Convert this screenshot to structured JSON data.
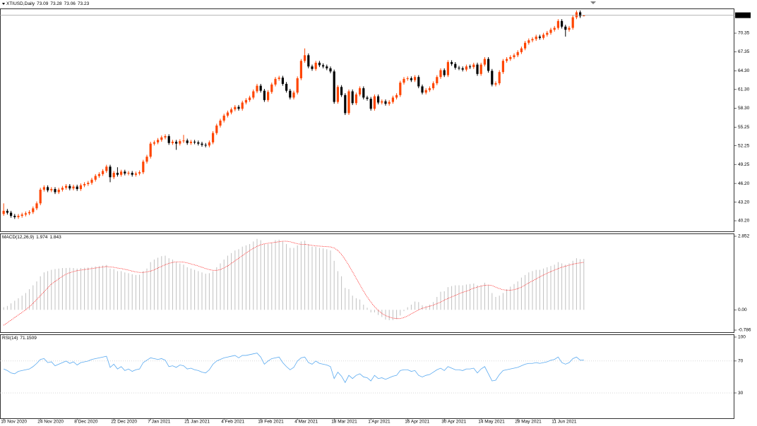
{
  "chart_data": [
    {
      "type": "candlestick",
      "title": "XTIUSD,Daily",
      "title_values": [
        73.09,
        73.28,
        73.06,
        73.23
      ],
      "up_color": "#ff4500",
      "down_color": "#000000",
      "last_price": 73.23,
      "xlim": [
        -1,
        199
      ],
      "ylim": [
        38.39,
        74.32
      ],
      "yticks": [
        {
          "value": 40.2,
          "label": "40.20"
        },
        {
          "value": 43.2,
          "label": "43.20"
        },
        {
          "value": 46.2,
          "label": "46.20"
        },
        49.25,
        52.25,
        55.25,
        {
          "value": 58.3,
          "label": "58.30"
        },
        {
          "value": 61.3,
          "label": "61.30"
        },
        {
          "value": 64.3,
          "label": "64.30"
        },
        67.35,
        70.35
      ],
      "open": [
        41.3,
        41.8,
        41.5,
        41.0,
        40.8,
        41.0,
        41.2,
        41.4,
        41.6,
        42.2,
        43.0,
        45.2,
        45.6,
        45.1,
        45.3,
        44.8,
        45.2,
        45.5,
        45.8,
        45.4,
        45.7,
        45.3,
        45.9,
        46.1,
        46.3,
        46.8,
        47.4,
        47.7,
        48.2,
        48.9,
        47.2,
        47.9,
        47.6,
        48.1,
        47.8,
        47.9,
        47.6,
        47.8,
        48.0,
        49.7,
        50.5,
        52.6,
        52.8,
        53.2,
        53.6,
        53.8,
        52.7,
        52.9,
        52.6,
        53.0,
        53.1,
        52.7,
        52.9,
        52.8,
        52.6,
        52.4,
        52.3,
        52.8,
        54.3,
        55.5,
        56.3,
        57.1,
        57.6,
        58.1,
        58.5,
        58.2,
        59.2,
        59.6,
        60.0,
        61.0,
        61.9,
        61.1,
        59.6,
        60.9,
        62.1,
        63.0,
        63.2,
        62.2,
        61.1,
        60.0,
        60.8,
        63.1,
        65.9,
        66.8,
        65.0,
        64.6,
        65.6,
        65.2,
        65.0,
        64.7,
        64.2,
        59.3,
        61.7,
        60.4,
        57.5,
        61.0,
        59.1,
        60.5,
        61.5,
        60.0,
        59.8,
        58.2,
        60.2,
        59.2,
        59.4,
        59.0,
        59.3,
        60.0,
        60.4,
        62.4,
        63.0,
        63.1,
        62.8,
        63.3,
        61.8,
        60.8,
        61.2,
        61.5,
        62.3,
        63.3,
        64.4,
        63.6,
        65.7,
        65.4,
        64.8,
        64.7,
        64.5,
        65.0,
        64.9,
        65.3,
        63.8,
        65.3,
        66.2,
        64.3,
        62.1,
        62.3,
        64.1,
        65.9,
        66.2,
        66.5,
        66.8,
        67.3,
        67.9,
        68.8,
        69.2,
        69.4,
        69.8,
        69.6,
        70.1,
        70.4,
        70.9,
        71.2,
        72.3,
        71.4,
        70.9,
        71.2,
        72.9,
        73.7,
        73.09
      ],
      "high": [
        43.0,
        42.1,
        41.8,
        41.3,
        41.3,
        41.5,
        41.7,
        41.9,
        42.5,
        43.3,
        45.5,
        45.9,
        45.9,
        45.6,
        45.6,
        45.5,
        45.8,
        46.1,
        46.1,
        46.0,
        46.0,
        46.2,
        46.4,
        46.6,
        47.1,
        47.7,
        48.0,
        48.5,
        49.2,
        49.2,
        48.2,
        48.8,
        48.4,
        48.4,
        48.2,
        48.2,
        48.1,
        48.3,
        50.0,
        50.8,
        52.9,
        53.1,
        53.5,
        53.9,
        54.1,
        54.1,
        53.2,
        53.2,
        53.3,
        54.0,
        53.4,
        53.2,
        53.2,
        53.1,
        52.9,
        52.7,
        53.1,
        54.6,
        55.8,
        56.6,
        57.4,
        57.9,
        58.4,
        58.8,
        58.8,
        59.5,
        59.9,
        60.3,
        61.3,
        62.2,
        62.2,
        61.4,
        61.2,
        62.4,
        63.3,
        63.5,
        63.5,
        62.5,
        61.4,
        61.1,
        63.4,
        66.2,
        67.9,
        67.1,
        65.3,
        65.9,
        65.9,
        65.5,
        65.3,
        65.0,
        64.5,
        62.0,
        62.0,
        60.7,
        61.3,
        61.3,
        60.8,
        61.8,
        61.8,
        60.3,
        60.1,
        60.5,
        60.5,
        59.7,
        59.7,
        59.6,
        60.3,
        60.7,
        62.7,
        63.3,
        63.4,
        63.4,
        63.6,
        63.6,
        62.1,
        61.5,
        61.8,
        62.6,
        63.6,
        64.7,
        64.7,
        66.0,
        66.0,
        65.7,
        65.1,
        65.0,
        65.3,
        65.3,
        65.6,
        65.6,
        65.6,
        66.5,
        66.5,
        64.6,
        62.6,
        64.4,
        66.2,
        66.5,
        66.8,
        67.1,
        67.6,
        68.2,
        69.1,
        69.5,
        69.7,
        70.1,
        70.1,
        70.4,
        70.7,
        71.2,
        71.5,
        72.6,
        72.6,
        71.7,
        71.5,
        73.2,
        74.0,
        74.0,
        73.28
      ],
      "low": [
        41.0,
        41.2,
        40.7,
        40.5,
        40.5,
        40.7,
        40.9,
        41.1,
        41.3,
        41.9,
        42.7,
        44.9,
        44.8,
        44.8,
        44.5,
        44.5,
        44.9,
        45.2,
        45.1,
        45.1,
        45.0,
        45.0,
        45.6,
        45.8,
        46.0,
        46.5,
        47.1,
        47.4,
        47.9,
        46.4,
        46.9,
        47.3,
        47.3,
        47.5,
        47.5,
        47.3,
        47.3,
        47.5,
        47.7,
        49.4,
        50.2,
        52.3,
        52.5,
        52.9,
        53.3,
        52.4,
        52.4,
        51.6,
        52.3,
        52.7,
        52.4,
        52.4,
        52.5,
        52.3,
        52.1,
        52.0,
        52.0,
        52.5,
        54.0,
        55.2,
        56.0,
        56.8,
        57.3,
        57.8,
        57.9,
        57.9,
        58.9,
        59.3,
        59.7,
        60.7,
        60.8,
        59.3,
        59.3,
        60.6,
        61.8,
        62.7,
        61.9,
        60.8,
        59.7,
        59.7,
        60.5,
        62.8,
        65.6,
        64.7,
        64.3,
        64.3,
        64.9,
        64.7,
        64.4,
        63.9,
        59.0,
        59.0,
        60.1,
        57.2,
        57.2,
        58.8,
        58.8,
        60.2,
        59.7,
        59.5,
        57.9,
        57.9,
        58.9,
        58.9,
        58.7,
        58.7,
        59.0,
        59.7,
        60.1,
        62.1,
        62.7,
        62.5,
        62.5,
        61.5,
        60.5,
        60.5,
        60.9,
        61.2,
        62.0,
        63.0,
        63.3,
        63.3,
        65.1,
        64.5,
        64.4,
        64.2,
        64.2,
        64.6,
        64.6,
        63.5,
        63.5,
        65.0,
        64.0,
        61.8,
        61.8,
        62.0,
        63.8,
        65.6,
        65.9,
        66.2,
        66.5,
        67.0,
        67.6,
        68.5,
        68.9,
        69.1,
        69.3,
        69.3,
        69.8,
        70.1,
        70.6,
        70.9,
        71.1,
        69.8,
        70.6,
        70.9,
        72.6,
        72.79,
        73.06
      ],
      "close": [
        41.8,
        41.5,
        41.0,
        40.8,
        41.0,
        41.2,
        41.4,
        41.6,
        42.2,
        43.0,
        45.2,
        45.6,
        45.1,
        45.3,
        44.8,
        45.2,
        45.5,
        45.8,
        45.4,
        45.7,
        45.3,
        45.9,
        46.1,
        46.3,
        46.8,
        47.4,
        47.7,
        48.2,
        48.9,
        47.2,
        47.9,
        47.6,
        48.1,
        47.8,
        47.9,
        47.6,
        47.8,
        48.0,
        49.7,
        50.5,
        52.6,
        52.8,
        53.2,
        53.6,
        53.8,
        52.7,
        52.9,
        52.6,
        53.0,
        53.1,
        52.7,
        52.9,
        52.8,
        52.6,
        52.4,
        52.3,
        52.8,
        54.3,
        55.5,
        56.3,
        57.1,
        57.6,
        58.1,
        58.5,
        58.2,
        59.2,
        59.6,
        60.0,
        61.0,
        61.9,
        61.1,
        59.6,
        60.9,
        62.1,
        63.0,
        63.2,
        62.2,
        61.1,
        60.0,
        60.8,
        63.1,
        65.9,
        66.8,
        65.0,
        64.6,
        65.6,
        65.2,
        65.0,
        64.7,
        64.2,
        59.3,
        61.7,
        60.4,
        57.5,
        61.0,
        59.1,
        60.5,
        61.5,
        60.0,
        59.8,
        58.2,
        60.2,
        59.2,
        59.4,
        59.0,
        59.3,
        60.0,
        60.4,
        62.4,
        63.0,
        63.1,
        62.8,
        63.3,
        61.8,
        60.8,
        61.2,
        61.5,
        62.3,
        63.3,
        64.4,
        63.6,
        65.7,
        65.4,
        64.8,
        64.7,
        64.5,
        65.0,
        64.9,
        65.3,
        63.8,
        65.3,
        66.2,
        64.3,
        62.1,
        62.3,
        64.1,
        65.9,
        66.2,
        66.5,
        66.8,
        67.3,
        67.9,
        68.8,
        69.2,
        69.4,
        69.8,
        69.6,
        70.1,
        70.4,
        70.9,
        71.2,
        72.3,
        71.4,
        70.9,
        71.2,
        72.9,
        73.7,
        73.09,
        73.23
      ]
    },
    {
      "type": "macd",
      "title": "MACD(12,26,9)",
      "title_values": [
        1.974,
        1.843
      ],
      "histogram_color": "#c0c0c0",
      "signal_color": "#ff0000",
      "xlim": [
        -1,
        199
      ],
      "ylim": [
        -0.895,
        2.961
      ],
      "yticks": [
        2.852,
        {
          "value": 0,
          "label": "0.00"
        },
        -0.786
      ],
      "histogram": [
        0.1,
        0.15,
        0.25,
        0.35,
        0.45,
        0.55,
        0.65,
        0.8,
        0.95,
        1.1,
        1.3,
        1.45,
        1.5,
        1.55,
        1.58,
        1.6,
        1.62,
        1.62,
        1.63,
        1.62,
        1.6,
        1.62,
        1.63,
        1.64,
        1.66,
        1.68,
        1.7,
        1.72,
        1.74,
        1.6,
        1.58,
        1.5,
        1.5,
        1.45,
        1.42,
        1.38,
        1.35,
        1.36,
        1.5,
        1.6,
        1.85,
        1.95,
        2.02,
        2.08,
        2.1,
        2.0,
        1.95,
        1.85,
        1.8,
        1.75,
        1.65,
        1.6,
        1.55,
        1.5,
        1.45,
        1.4,
        1.42,
        1.5,
        1.65,
        1.8,
        1.95,
        2.1,
        2.2,
        2.3,
        2.35,
        2.45,
        2.5,
        2.55,
        2.65,
        2.75,
        2.7,
        2.55,
        2.55,
        2.6,
        2.7,
        2.72,
        2.65,
        2.55,
        2.4,
        2.4,
        2.5,
        2.65,
        2.68,
        2.55,
        2.45,
        2.45,
        2.4,
        2.38,
        2.35,
        2.3,
        1.9,
        1.5,
        1.3,
        0.85,
        0.8,
        0.55,
        0.45,
        0.4,
        0.2,
        0.08,
        -0.1,
        -0.1,
        -0.2,
        -0.28,
        -0.38,
        -0.4,
        -0.4,
        -0.36,
        -0.22,
        -0.05,
        0.1,
        0.2,
        0.32,
        0.3,
        0.18,
        0.15,
        0.2,
        0.3,
        0.5,
        0.7,
        0.72,
        0.88,
        0.92,
        0.95,
        0.95,
        0.95,
        0.98,
        1.0,
        1.02,
        0.95,
        0.95,
        1.05,
        0.95,
        0.65,
        0.5,
        0.55,
        0.65,
        0.8,
        0.9,
        1.0,
        1.1,
        1.25,
        1.35,
        1.45,
        1.5,
        1.55,
        1.55,
        1.6,
        1.65,
        1.7,
        1.75,
        1.85,
        1.8,
        1.75,
        1.8,
        1.9,
        2.0,
        1.96,
        1.974
      ],
      "signal": [
        -0.6,
        -0.5,
        -0.4,
        -0.3,
        -0.2,
        -0.1,
        0,
        0.12,
        0.25,
        0.4,
        0.55,
        0.7,
        0.85,
        1.0,
        1.1,
        1.2,
        1.3,
        1.38,
        1.44,
        1.48,
        1.52,
        1.54,
        1.56,
        1.58,
        1.6,
        1.62,
        1.64,
        1.66,
        1.68,
        1.66,
        1.65,
        1.62,
        1.6,
        1.57,
        1.54,
        1.5,
        1.47,
        1.45,
        1.45,
        1.47,
        1.5,
        1.55,
        1.62,
        1.68,
        1.75,
        1.8,
        1.84,
        1.86,
        1.86,
        1.85,
        1.82,
        1.78,
        1.74,
        1.7,
        1.65,
        1.6,
        1.56,
        1.53,
        1.53,
        1.56,
        1.62,
        1.7,
        1.8,
        1.9,
        2.0,
        2.1,
        2.2,
        2.3,
        2.38,
        2.46,
        2.52,
        2.56,
        2.58,
        2.6,
        2.62,
        2.64,
        2.66,
        2.66,
        2.64,
        2.6,
        2.56,
        2.54,
        2.54,
        2.52,
        2.5,
        2.48,
        2.47,
        2.46,
        2.45,
        2.44,
        2.4,
        2.3,
        2.15,
        1.95,
        1.72,
        1.48,
        1.22,
        0.98,
        0.72,
        0.5,
        0.3,
        0.12,
        -0.02,
        -0.14,
        -0.22,
        -0.28,
        -0.32,
        -0.34,
        -0.34,
        -0.3,
        -0.24,
        -0.16,
        -0.08,
        0,
        0.06,
        0.1,
        0.14,
        0.18,
        0.24,
        0.3,
        0.38,
        0.44,
        0.5,
        0.56,
        0.62,
        0.68,
        0.72,
        0.78,
        0.84,
        0.88,
        0.92,
        0.95,
        0.96,
        0.94,
        0.88,
        0.82,
        0.78,
        0.76,
        0.76,
        0.78,
        0.82,
        0.88,
        0.96,
        1.04,
        1.12,
        1.2,
        1.28,
        1.35,
        1.42,
        1.48,
        1.54,
        1.6,
        1.65,
        1.69,
        1.73,
        1.77,
        1.8,
        1.82,
        1.843
      ]
    },
    {
      "type": "line",
      "title": "RSI(14)",
      "title_values": [
        71.1509
      ],
      "color": "#5aaaf0",
      "levels": [
        70,
        30
      ],
      "xlim": [
        -1,
        199
      ],
      "ylim": [
        -2.7,
        103.5
      ],
      "yticks": [
        100,
        70,
        30
      ],
      "xticks": [
        {
          "value": 0,
          "label": "10 Nov 2020"
        },
        {
          "value": 10,
          "label": "24 Nov 2020"
        },
        {
          "value": 20,
          "label": "8 Dec 2020"
        },
        {
          "value": 30,
          "label": "22 Dec 2020"
        },
        {
          "value": 40,
          "label": "7 Jan 2021"
        },
        {
          "value": 50,
          "label": "21 Jan 2021"
        },
        {
          "value": 60,
          "label": "4 Feb 2021"
        },
        {
          "value": 70,
          "label": "18 Feb 2021"
        },
        {
          "value": 80,
          "label": "4 Mar 2021"
        },
        {
          "value": 90,
          "label": "18 Mar 2021"
        },
        {
          "value": 100,
          "label": "1 Apr 2021"
        },
        {
          "value": 110,
          "label": "16 Apr 2021"
        },
        {
          "value": 120,
          "label": "30 Apr 2021"
        },
        {
          "value": 130,
          "label": "14 May 2021"
        },
        {
          "value": 140,
          "label": "28 May 2021"
        },
        {
          "value": 150,
          "label": "11 Jun 2021"
        }
      ],
      "values": [
        60,
        58,
        55,
        54,
        57,
        58,
        59,
        60,
        63,
        67,
        72,
        73,
        68,
        69,
        64,
        66,
        68,
        70,
        67,
        69,
        65,
        68,
        69,
        70,
        72,
        73,
        74,
        75,
        76,
        62,
        66,
        60,
        63,
        58,
        60,
        57,
        59,
        60,
        68,
        71,
        74,
        73,
        72,
        73,
        71,
        63,
        64,
        62,
        65,
        64,
        60,
        61,
        59,
        58,
        56,
        55,
        59,
        66,
        70,
        72,
        74,
        75,
        76,
        77,
        74,
        77,
        77,
        78,
        79,
        80,
        75,
        66,
        70,
        73,
        74,
        75,
        68,
        63,
        59,
        62,
        70,
        74,
        75,
        68,
        66,
        70,
        67,
        66,
        65,
        63,
        48,
        56,
        51,
        43,
        52,
        48,
        52,
        54,
        50,
        49,
        45,
        52,
        48,
        49,
        47,
        49,
        51,
        52,
        58,
        59,
        59,
        57,
        58,
        52,
        50,
        52,
        53,
        56,
        59,
        61,
        58,
        63,
        61,
        59,
        59,
        58,
        60,
        60,
        61,
        55,
        60,
        63,
        54,
        45,
        46,
        53,
        58,
        59,
        60,
        61,
        62,
        64,
        66,
        67,
        67,
        68,
        67,
        68,
        69,
        71,
        72,
        75,
        68,
        66,
        68,
        73,
        75,
        71,
        71.1509
      ]
    }
  ]
}
